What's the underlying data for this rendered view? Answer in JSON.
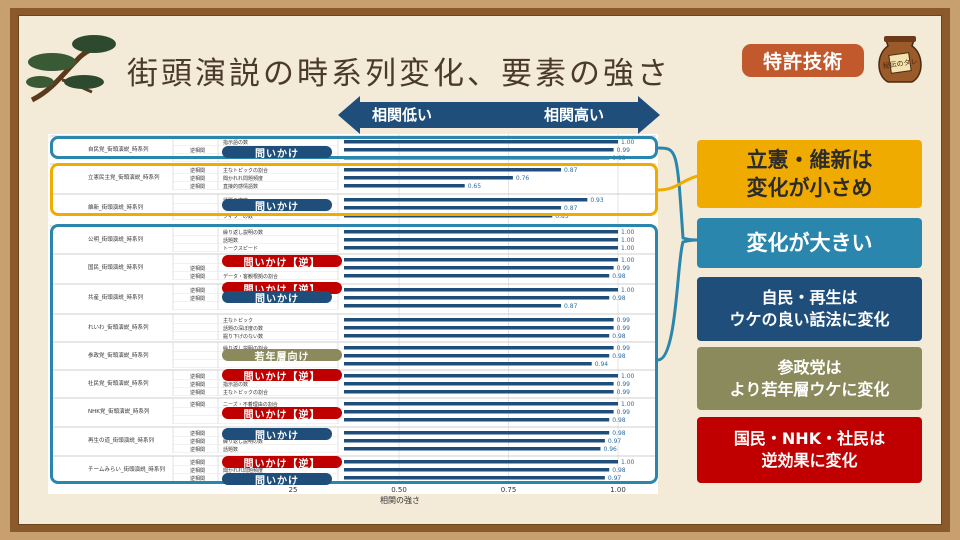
{
  "title": "街頭演説の時系列変化、要素の強さ",
  "badge": "特許技術",
  "pot_label": "秘伝のタレ",
  "arrow": {
    "low": "相関低い",
    "high": "相関高い"
  },
  "chart_data": {
    "type": "bar",
    "orientation": "horizontal",
    "xlabel": "相関の強さ",
    "xlim": [
      0.0,
      1.0
    ],
    "xticks": [
      "25",
      "0.50",
      "0.75",
      "1.00"
    ],
    "groups": [
      {
        "name": "自民党_街頭演説_時系列",
        "rows": [
          {
            "dir": "",
            "feature": "指示語の数",
            "value": 1.0,
            "label": "1.00"
          },
          {
            "dir": "逆相関",
            "feature": "",
            "value": 0.99,
            "label": "0.99"
          },
          {
            "dir": "",
            "feature": "",
            "value": 0.98,
            "label": "0.98"
          }
        ]
      },
      {
        "name": "立憲民主党_街頭演説_時系列",
        "rows": [
          {
            "dir": "逆相関",
            "feature": "主なトピックの割合",
            "value": 0.87,
            "label": "0.87"
          },
          {
            "dir": "逆相関",
            "feature": "聞かれれ問題頻度",
            "value": 0.76,
            "label": "0.76"
          },
          {
            "dir": "逆相関",
            "feature": "直接的感情語数",
            "value": 0.65,
            "label": "0.65"
          }
        ]
      },
      {
        "name": "維新_街頭演説_時系列",
        "rows": [
          {
            "dir": "",
            "feature": "話題の密度",
            "value": 0.93,
            "label": "0.93"
          },
          {
            "dir": "",
            "feature": "",
            "value": 0.87,
            "label": "0.87"
          },
          {
            "dir": "",
            "feature": "フィラーの数",
            "value": 0.85,
            "label": "0.85"
          }
        ]
      },
      {
        "name": "公明_街頭演説_時系列",
        "rows": [
          {
            "dir": "",
            "feature": "繰り返し説明の数",
            "value": 1.0,
            "label": "1.00"
          },
          {
            "dir": "",
            "feature": "話題数",
            "value": 1.0,
            "label": "1.00"
          },
          {
            "dir": "",
            "feature": "トークスピード",
            "value": 1.0,
            "label": "1.00"
          }
        ]
      },
      {
        "name": "国民_街頭演説_時系列",
        "rows": [
          {
            "dir": "",
            "feature": "",
            "value": 1.0,
            "label": "1.00"
          },
          {
            "dir": "逆相関",
            "feature": "",
            "value": 0.99,
            "label": "0.99"
          },
          {
            "dir": "逆相関",
            "feature": "データ・客観根拠の割合",
            "value": 0.98,
            "label": "0.98"
          }
        ]
      },
      {
        "name": "共産_街頭演説_時系列",
        "rows": [
          {
            "dir": "逆相関",
            "feature": "",
            "value": 1.0,
            "label": "1.00"
          },
          {
            "dir": "逆相関",
            "feature": "",
            "value": 0.98,
            "label": "0.98"
          },
          {
            "dir": "",
            "feature": "",
            "value": 0.87,
            "label": "0.87"
          }
        ]
      },
      {
        "name": "れいわ_街頭演説_時系列",
        "rows": [
          {
            "dir": "",
            "feature": "主なトピック",
            "value": 0.99,
            "label": "0.99"
          },
          {
            "dir": "",
            "feature": "話題の深ぼ度の数",
            "value": 0.99,
            "label": "0.99"
          },
          {
            "dir": "",
            "feature": "掘り下げのない数",
            "value": 0.98,
            "label": "0.98"
          }
        ]
      },
      {
        "name": "参政党_街頭演説_時系列",
        "rows": [
          {
            "dir": "",
            "feature": "繰り返し説明の割合",
            "value": 0.99,
            "label": "0.99"
          },
          {
            "dir": "",
            "feature": "",
            "value": 0.98,
            "label": "0.98"
          },
          {
            "dir": "",
            "feature": "",
            "value": 0.94,
            "label": "0.94"
          }
        ]
      },
      {
        "name": "社民党_街頭演説_時系列",
        "rows": [
          {
            "dir": "逆相関",
            "feature": "",
            "value": 1.0,
            "label": "1.00"
          },
          {
            "dir": "逆相関",
            "feature": "指示語の数",
            "value": 0.99,
            "label": "0.99"
          },
          {
            "dir": "逆相関",
            "feature": "主なトピックの割合",
            "value": 0.99,
            "label": "0.99"
          }
        ]
      },
      {
        "name": "NHK党_街頭演説_時系列",
        "rows": [
          {
            "dir": "逆相関",
            "feature": "ニーズ・不着理由の割合",
            "value": 1.0,
            "label": "1.00"
          },
          {
            "dir": "",
            "feature": "",
            "value": 0.99,
            "label": "0.99"
          },
          {
            "dir": "",
            "feature": "",
            "value": 0.98,
            "label": "0.98"
          }
        ]
      },
      {
        "name": "再生の道_街頭演説_時系列",
        "rows": [
          {
            "dir": "逆相関",
            "feature": "",
            "value": 0.98,
            "label": "0.98"
          },
          {
            "dir": "逆相関",
            "feature": "繰り返し説明の数",
            "value": 0.97,
            "label": "0.97"
          },
          {
            "dir": "逆相関",
            "feature": "話題数",
            "value": 0.96,
            "label": "0.96"
          }
        ]
      },
      {
        "name": "チームみらい_街頭演説_時系列",
        "rows": [
          {
            "dir": "逆相関",
            "feature": "",
            "value": 1.0,
            "label": "1.00"
          },
          {
            "dir": "逆相関",
            "feature": "聞かれれ問題頻度",
            "value": 0.98,
            "label": "0.98"
          },
          {
            "dir": "逆相関",
            "feature": "",
            "value": 0.97,
            "label": "0.97"
          }
        ]
      }
    ]
  },
  "pills": [
    {
      "text": "問いかけ",
      "color": "#1f4e7a"
    },
    {
      "text": "問いかけ",
      "color": "#1f4e7a"
    },
    {
      "text": "問いかけ【逆】",
      "color": "#c00000"
    },
    {
      "text": "問いかけ【逆】",
      "color": "#c00000"
    },
    {
      "text": "問いかけ",
      "color": "#1f4e7a"
    },
    {
      "text": "若年層向け",
      "color": "#8a8a5c"
    },
    {
      "text": "問いかけ【逆】",
      "color": "#c00000"
    },
    {
      "text": "問いかけ【逆】",
      "color": "#c00000"
    },
    {
      "text": "問いかけ",
      "color": "#1f4e7a"
    },
    {
      "text": "問いかけ【逆】",
      "color": "#c00000"
    },
    {
      "text": "問いかけ",
      "color": "#1f4e7a"
    }
  ],
  "callouts": [
    {
      "lines": [
        "立憲・維新は",
        "変化が小さめ"
      ],
      "color": "#f0ab00",
      "text_color": "#2b2b2b"
    },
    {
      "lines": [
        "変化が大きい"
      ],
      "color": "#2b86ad",
      "text_color": "#ffffff"
    },
    {
      "lines": [
        "自民・再生は",
        "ウケの良い話法に変化"
      ],
      "color": "#1f4e7a",
      "text_color": "#ffffff"
    },
    {
      "lines": [
        "参政党は",
        "より若年層ウケに変化"
      ],
      "color": "#8a8a5c",
      "text_color": "#ffffff"
    },
    {
      "lines": [
        "国民・NHK・社民は",
        "逆効果に変化"
      ],
      "color": "#c00000",
      "text_color": "#ffffff"
    }
  ],
  "colors": {
    "bar": "#1f4e7a",
    "frame": "#8a5a2b",
    "blue_box": "#2b86ad",
    "orange_box": "#f0ab00"
  }
}
